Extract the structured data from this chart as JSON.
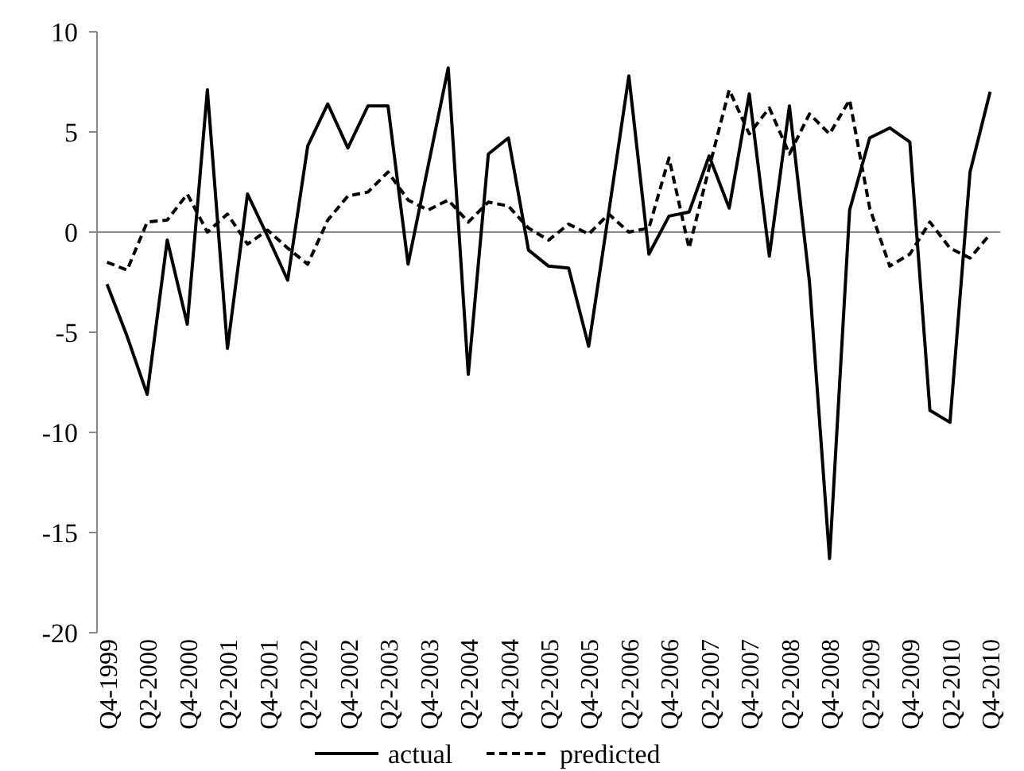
{
  "chart_data": {
    "type": "line",
    "categories": [
      "Q4-1999",
      null,
      "Q2-2000",
      null,
      "Q4-2000",
      null,
      "Q2-2001",
      null,
      "Q4-2001",
      null,
      "Q2-2002",
      null,
      "Q4-2002",
      null,
      "Q2-2003",
      null,
      "Q4-2003",
      null,
      "Q2-2004",
      null,
      "Q4-2004",
      null,
      "Q2-2005",
      null,
      "Q4-2005",
      null,
      "Q2-2006",
      null,
      "Q4-2006",
      null,
      "Q2-2007",
      null,
      "Q4-2007",
      null,
      "Q2-2008",
      null,
      "Q4-2008",
      null,
      "Q2-2009",
      null,
      "Q4-2009",
      null,
      "Q2-2010",
      null,
      "Q4-2010"
    ],
    "series": [
      {
        "name": "actual",
        "color": "#000000",
        "line_style": "solid",
        "values": [
          -2.6,
          -5.2,
          -8.1,
          -0.4,
          -4.6,
          7.1,
          -5.8,
          1.9,
          -0.2,
          -2.4,
          4.3,
          6.4,
          4.2,
          6.3,
          6.3,
          -1.6,
          3.3,
          8.2,
          -7.1,
          3.9,
          4.7,
          -0.9,
          -1.7,
          -1.8,
          -5.7,
          1.0,
          7.8,
          -1.1,
          0.8,
          1.0,
          3.8,
          1.2,
          6.9,
          -1.2,
          6.3,
          -2.5,
          -16.3,
          1.1,
          4.7,
          5.2,
          4.5,
          -8.9,
          -9.5,
          3.0,
          7.0
        ]
      },
      {
        "name": "predicted",
        "color": "#000000",
        "line_style": "dashed",
        "values": [
          -1.5,
          -1.9,
          0.5,
          0.6,
          1.9,
          0.0,
          0.9,
          -0.6,
          0.1,
          -0.8,
          -1.6,
          0.6,
          1.8,
          2.0,
          3.0,
          1.6,
          1.1,
          1.6,
          0.5,
          1.5,
          1.3,
          0.2,
          -0.4,
          0.4,
          -0.1,
          0.9,
          0.0,
          0.2,
          3.7,
          -0.8,
          3.2,
          7.1,
          4.9,
          6.2,
          3.9,
          5.9,
          4.9,
          6.6,
          1.2,
          -1.7,
          -1.1,
          0.5,
          -0.8,
          -1.3,
          -0.1
        ]
      }
    ],
    "ylim": [
      -20,
      10
    ],
    "yticks": [
      -20,
      -15,
      -10,
      -5,
      0,
      5,
      10
    ],
    "legend": "bottom",
    "marker": "none"
  }
}
